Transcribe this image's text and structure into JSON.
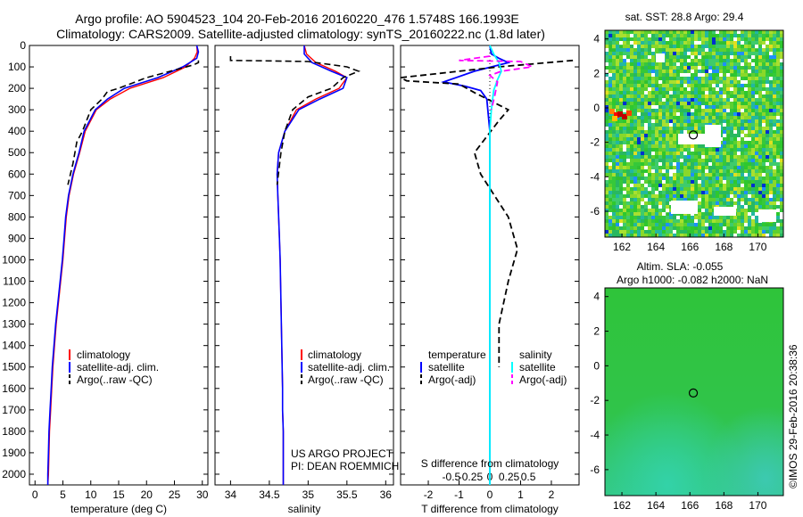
{
  "header": {
    "line1": "Argo profile: AO 5904523_104 20-Feb-2016 20160220_476 1.5748S 166.1993E",
    "line2": "Climatology: CARS2009. Satellite-adjusted climatology: synTS_20160222.nc (1.8d later)"
  },
  "project": {
    "line1": "US ARGO PROJECT",
    "line2": "PI: DEAN ROEMMICH"
  },
  "watermark": "©IMOS 29-Feb-2016 20:38:36",
  "colors": {
    "climatology": "#ff0000",
    "satellite": "#0000ff",
    "argo": "#000000",
    "satellite_s": "#00ffff",
    "argo_s": "#ff00ff"
  },
  "chart_data": [
    {
      "id": "temperature",
      "type": "line",
      "xlabel": "temperature (deg C)",
      "ylim": [
        2050,
        0
      ],
      "xlim": [
        -1,
        31
      ],
      "xticks": [
        "0",
        "5",
        "10",
        "15",
        "20",
        "25",
        "30"
      ],
      "yticks": [
        "0",
        "100",
        "200",
        "300",
        "400",
        "500",
        "600",
        "700",
        "800",
        "900",
        "1000",
        "1100",
        "1200",
        "1300",
        "1400",
        "1500",
        "1600",
        "1700",
        "1800",
        "1900",
        "2000"
      ],
      "legend": [
        "climatology",
        "satellite-adj. clim.",
        "Argo(..raw -QC)"
      ],
      "series": [
        {
          "name": "climatology",
          "x": [
            29.0,
            29.1,
            28.6,
            27,
            23,
            17,
            13.5,
            11,
            9,
            8,
            6.9,
            6.1,
            5.6,
            5.3,
            5.0,
            4.6,
            4.2,
            3.8,
            3.5,
            3.2,
            3.0,
            2.8,
            2.6,
            2.5,
            2.4,
            2.3
          ],
          "y": [
            0,
            30,
            60,
            100,
            150,
            200,
            250,
            300,
            400,
            500,
            600,
            700,
            800,
            900,
            1000,
            1100,
            1200,
            1300,
            1400,
            1500,
            1600,
            1700,
            1800,
            1900,
            2000,
            2050
          ]
        },
        {
          "name": "satellite-adj. clim.",
          "x": [
            29.0,
            29.3,
            29.0,
            26.5,
            22,
            16,
            13,
            10.8,
            8.8,
            7.9,
            6.8,
            6.0,
            5.5,
            5.2,
            4.9,
            4.5,
            4.1,
            3.7,
            3.4,
            3.1,
            2.9,
            2.7,
            2.5,
            2.4,
            2.3,
            2.3
          ],
          "y": [
            0,
            30,
            60,
            100,
            150,
            200,
            250,
            300,
            400,
            500,
            600,
            700,
            800,
            900,
            1000,
            1100,
            1200,
            1300,
            1400,
            1500,
            1600,
            1700,
            1800,
            1900,
            2000,
            2050
          ]
        },
        {
          "name": "Argo(..raw -QC)",
          "x": [
            29.3,
            29.3,
            28.5,
            25,
            20,
            15,
            13,
            12,
            10,
            8.5,
            7.5,
            6.8,
            5.9
          ],
          "y": [
            70,
            80,
            90,
            115,
            150,
            200,
            215,
            250,
            300,
            400,
            450,
            550,
            650
          ]
        }
      ]
    },
    {
      "id": "salinity",
      "type": "line",
      "xlabel": "salinity",
      "ylim": [
        2050,
        0
      ],
      "xlim": [
        33.8,
        36.1
      ],
      "xticks": [
        "34",
        "34.5",
        "35",
        "35.5",
        "36"
      ],
      "legend": [
        "climatology",
        "satellite-adj. clim.",
        "Argo(..raw -QC)"
      ],
      "series": [
        {
          "name": "climatology",
          "x": [
            34.95,
            34.98,
            35.1,
            35.35,
            35.5,
            35.4,
            35.1,
            34.85,
            34.7,
            34.62,
            34.6,
            34.61,
            34.62,
            34.63,
            34.64,
            34.65,
            34.66,
            34.67,
            34.67,
            34.68,
            34.68,
            34.68,
            34.68
          ],
          "y": [
            0,
            40,
            80,
            120,
            150,
            200,
            250,
            300,
            400,
            500,
            600,
            700,
            800,
            900,
            1000,
            1200,
            1400,
            1600,
            1700,
            1800,
            1900,
            2000,
            2050
          ]
        },
        {
          "name": "satellite-adj. clim.",
          "x": [
            34.95,
            34.95,
            35.05,
            35.3,
            35.5,
            35.45,
            35.15,
            34.88,
            34.7,
            34.62,
            34.6,
            34.61,
            34.62,
            34.63,
            34.64,
            34.65,
            34.66,
            34.67,
            34.67,
            34.68,
            34.68,
            34.68,
            34.68
          ],
          "y": [
            0,
            40,
            80,
            120,
            150,
            200,
            250,
            300,
            400,
            500,
            600,
            700,
            800,
            900,
            1000,
            1200,
            1400,
            1600,
            1700,
            1800,
            1900,
            2000,
            2050
          ]
        },
        {
          "name": "Argo(..raw -QC)",
          "x": [
            34.0,
            34.0,
            34.5,
            35.0,
            35.5,
            35.65,
            35.45,
            35.3,
            35.0,
            34.8,
            34.7,
            34.65,
            34.6
          ],
          "y": [
            50,
            70,
            72,
            75,
            100,
            120,
            150,
            200,
            240,
            300,
            400,
            500,
            650
          ]
        }
      ]
    },
    {
      "id": "difference",
      "type": "line",
      "xlabel": "T difference from climatology",
      "title": "S difference from climatology",
      "ylim": [
        2050,
        0
      ],
      "xlim": [
        -2.9,
        2.9
      ],
      "xticks_T": [
        "-2",
        "-1",
        "0",
        "1",
        "2"
      ],
      "xticks_S": [
        "-0.5",
        "-0.25",
        "0",
        "0.25",
        "0.5"
      ],
      "legend_T": {
        "title": "temperature",
        "items": [
          "satellite",
          "Argo(-adj)"
        ]
      },
      "legend_S": {
        "title": "salinity",
        "items": [
          "satellite",
          "Argo(-adj)"
        ]
      },
      "series": [
        {
          "name": "temperature satellite",
          "x": [
            0,
            0.05,
            0.3,
            0.6,
            -0.5,
            -1.5,
            -0.8,
            -0.3,
            -0.1,
            0,
            0,
            0,
            0,
            0,
            0,
            0,
            0,
            0,
            0,
            0,
            0
          ],
          "y": [
            0,
            40,
            60,
            80,
            120,
            170,
            190,
            210,
            250,
            400,
            600,
            800,
            1000,
            1200,
            1400,
            1600,
            1700,
            1800,
            1900,
            2000,
            2050
          ]
        },
        {
          "name": "temperature Argo(-adj)",
          "x": [
            2.7,
            1.5,
            0.3,
            -2.9,
            -2.7,
            -1,
            -0.5,
            0.6,
            0.3,
            -0.5,
            -0.3,
            0.6,
            0.7,
            0.9,
            0.6,
            0.3,
            0.3
          ],
          "y": [
            70,
            85,
            100,
            150,
            165,
            180,
            220,
            300,
            350,
            500,
            600,
            800,
            850,
            950,
            1100,
            1300,
            1500
          ]
        },
        {
          "name": "salinity satellite",
          "x": [
            0.0,
            0.05,
            0.12,
            0.15,
            0.1,
            0.05,
            0.02,
            0.0,
            0.0,
            0.0,
            0.0,
            0.0,
            0.0
          ],
          "y": [
            0,
            40,
            80,
            120,
            160,
            210,
            300,
            400,
            600,
            800,
            1200,
            1600,
            2050
          ]
        },
        {
          "name": "salinity Argo(-adj)",
          "x": [
            0.0,
            -0.4,
            0.4,
            0.55,
            0.15,
            0.0,
            0.1,
            0.06,
            0.02
          ],
          "y": [
            50,
            70,
            75,
            100,
            120,
            140,
            170,
            240,
            300
          ]
        }
      ]
    },
    {
      "id": "sst-map",
      "type": "heatmap",
      "title": "sat. SST: 28.8 Argo: 29.4",
      "xticks": [
        "162",
        "164",
        "166",
        "168",
        "170"
      ],
      "yticks": [
        "4",
        "2",
        "0",
        "-2",
        "-4",
        "-6"
      ],
      "xlim": [
        161,
        171.5
      ],
      "ylim": [
        -7.5,
        4.5
      ],
      "marker": [
        166.2,
        -1.57
      ]
    },
    {
      "id": "sla-map",
      "type": "heatmap",
      "title": "Altim. SLA: -0.055",
      "subtitle": "Argo h1000: -0.082 h2000: NaN",
      "xticks": [
        "162",
        "164",
        "166",
        "168",
        "170"
      ],
      "yticks": [
        "4",
        "2",
        "0",
        "-2",
        "-4",
        "-6"
      ],
      "xlim": [
        161,
        171.5
      ],
      "ylim": [
        -7.5,
        4.5
      ],
      "marker": [
        166.2,
        -1.57
      ]
    }
  ]
}
